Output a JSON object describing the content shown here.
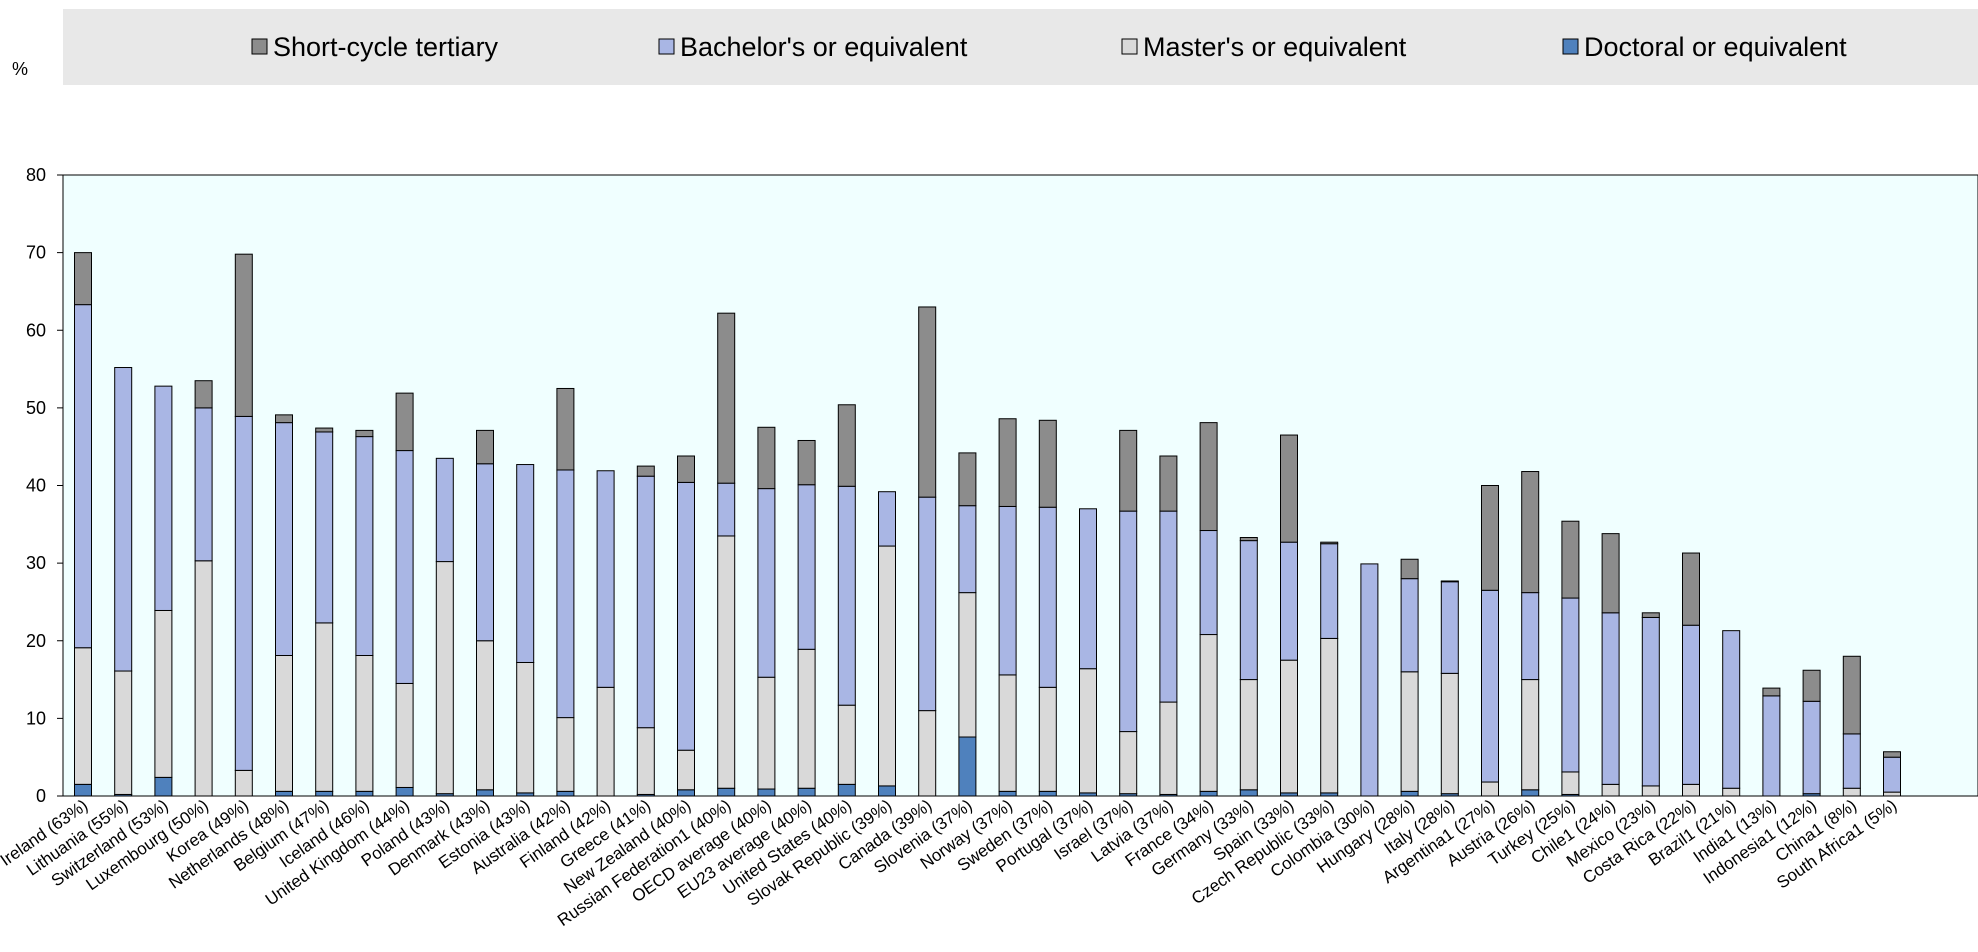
{
  "chart_data": {
    "type": "bar",
    "stacked": true,
    "ylabel": "%",
    "ylim": [
      0,
      80
    ],
    "yticks": [
      0,
      10,
      20,
      30,
      40,
      50,
      60,
      70,
      80
    ],
    "grid": false,
    "legend_position": "top",
    "categories": [
      "Ireland (63%)",
      "Lithuania (55%)",
      "Switzerland (53%)",
      "Luxembourg (50%)",
      "Korea (49%)",
      "Netherlands (48%)",
      "Belgium (47%)",
      "Iceland (46%)",
      "United Kingdom (44%)",
      "Poland (43%)",
      "Denmark (43%)",
      "Estonia (43%)",
      "Australia (42%)",
      "Finland (42%)",
      "Greece (41%)",
      "New Zealand (40%)",
      "Russian Federation1 (40%)",
      "OECD average (40%)",
      "EU23 average (40%)",
      "United States (40%)",
      "Slovak Republic (39%)",
      "Canada (39%)",
      "Slovenia (37%)",
      "Norway (37%)",
      "Sweden (37%)",
      "Portugal (37%)",
      "Israel (37%)",
      "Latvia (37%)",
      "France (34%)",
      "Germany (33%)",
      "Spain (33%)",
      "Czech Republic (33%)",
      "Colombia (30%)",
      "Hungary (28%)",
      "Italy (28%)",
      "Argentina1 (27%)",
      "Austria (26%)",
      "Turkey (25%)",
      "Chile1 (24%)",
      "Mexico (23%)",
      "Costa Rica (22%)",
      "Brazil1 (21%)",
      "India1 (13%)",
      "Indonesia1 (12%)",
      "China1 (8%)",
      "South Africa1 (5%)"
    ],
    "series": [
      {
        "name": "Doctoral or equivalent",
        "color": "#4f81bd",
        "values": [
          1.5,
          0.2,
          2.4,
          0,
          0,
          0.6,
          0.6,
          0.6,
          1.1,
          0.3,
          0.8,
          0.4,
          0.6,
          0,
          0.2,
          0.8,
          1.0,
          0.9,
          1.0,
          1.5,
          1.3,
          0,
          7.6,
          0.6,
          0.6,
          0.4,
          0.3,
          0.2,
          0.6,
          0.8,
          0.4,
          0.4,
          0,
          0.6,
          0.3,
          0,
          0.8,
          0.2,
          0,
          0,
          0,
          0,
          0,
          0.3,
          0,
          0
        ]
      },
      {
        "name": "Master's or equivalent",
        "color": "#d9d9d9",
        "values": [
          17.6,
          15.9,
          21.5,
          30.3,
          3.3,
          17.5,
          21.7,
          17.5,
          13.4,
          29.9,
          19.2,
          16.8,
          9.5,
          14.0,
          8.6,
          5.1,
          32.5,
          14.4,
          17.9,
          10.2,
          30.9,
          11.0,
          18.6,
          15.0,
          13.4,
          16.0,
          8.0,
          11.9,
          20.2,
          14.2,
          17.1,
          19.9,
          0,
          15.4,
          15.5,
          1.8,
          14.2,
          2.9,
          1.5,
          1.3,
          1.5,
          1.0,
          0,
          0,
          1.0,
          0.5
        ]
      },
      {
        "name": "Bachelor's or equivalent",
        "color": "#a9b6e4",
        "values": [
          44.2,
          39.1,
          28.9,
          19.7,
          45.6,
          30.0,
          24.6,
          28.2,
          30.0,
          13.3,
          22.8,
          25.5,
          31.9,
          27.9,
          32.4,
          34.5,
          6.8,
          24.3,
          21.2,
          28.2,
          7.0,
          27.5,
          11.2,
          21.7,
          23.2,
          20.6,
          28.4,
          24.6,
          13.4,
          17.9,
          15.2,
          12.2,
          29.9,
          12.0,
          11.8,
          24.7,
          11.2,
          22.4,
          22.1,
          21.7,
          20.5,
          20.3,
          12.9,
          11.9,
          7.0,
          4.5
        ]
      },
      {
        "name": "Short-cycle tertiary",
        "color": "#8c8c8c",
        "values": [
          6.7,
          0,
          0,
          3.5,
          20.9,
          1.0,
          0.5,
          0.8,
          7.4,
          0,
          4.3,
          0,
          10.5,
          0,
          1.3,
          3.4,
          21.9,
          7.9,
          5.7,
          10.5,
          0,
          24.5,
          6.8,
          11.3,
          11.2,
          0,
          10.4,
          7.1,
          13.9,
          0.4,
          13.8,
          0.2,
          0,
          2.5,
          0.1,
          13.5,
          15.6,
          9.9,
          10.2,
          0.6,
          9.3,
          0,
          1.0,
          4.0,
          10.0,
          0.7
        ]
      }
    ]
  }
}
